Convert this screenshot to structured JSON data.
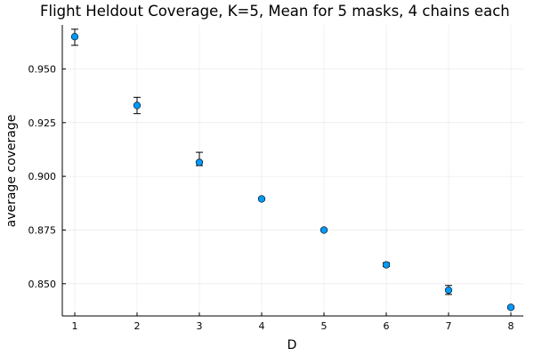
{
  "chart_data": {
    "type": "scatter",
    "title": "Flight Heldout Coverage, K=5, Mean for 5 masks, 4 chains each",
    "xlabel": "D",
    "ylabel": "average coverage",
    "xlim": [
      0.8,
      8.2
    ],
    "ylim": [
      0.835,
      0.9705
    ],
    "x_ticks": [
      1,
      2,
      3,
      4,
      5,
      6,
      7,
      8
    ],
    "y_ticks": [
      0.85,
      0.875,
      0.9,
      0.925,
      0.95
    ],
    "y_tick_labels": [
      "0.850",
      "0.875",
      "0.900",
      "0.925",
      "0.950"
    ],
    "grid": true,
    "legend": "none",
    "marker_color": "#009af9",
    "series": [
      {
        "x": [
          1,
          2,
          3,
          4,
          5,
          6,
          7,
          8
        ],
        "y": [
          0.965,
          0.933,
          0.9065,
          0.8895,
          0.875,
          0.8588,
          0.847,
          0.839
        ],
        "err_low": [
          0.961,
          0.9292,
          0.905,
          0.889,
          0.8745,
          0.858,
          0.845,
          0.8385
        ],
        "err_high": [
          0.9685,
          0.9368,
          0.9112,
          0.89,
          0.8755,
          0.8598,
          0.8492,
          0.8395
        ]
      }
    ]
  }
}
